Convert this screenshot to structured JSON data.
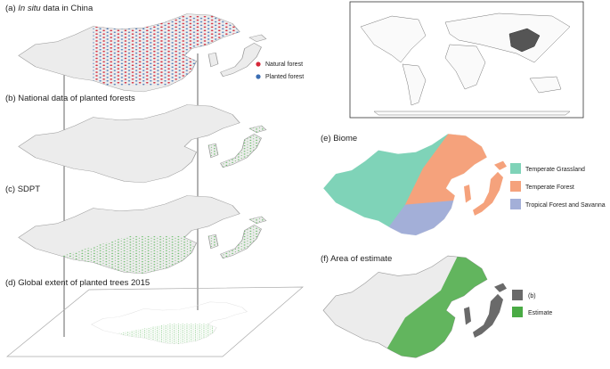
{
  "panels": [
    {
      "label": "(a)",
      "title_italic": "In situ",
      "title": "data in China",
      "legend": [
        {
          "label": "Natural forest",
          "color": "#d62839"
        },
        {
          "label": "Planted forest",
          "color": "#3b6db3"
        }
      ]
    },
    {
      "title": "(b) National data of planted forests"
    },
    {
      "title": "(c) SDPT"
    },
    {
      "title": "(d) Global extent of planted trees 2015"
    },
    {
      "title": "(e) Biome",
      "legend": [
        {
          "label": "Temperate Grassland",
          "color": "#7fd3b8"
        },
        {
          "label": "Temperate Forest",
          "color": "#f5a27c"
        },
        {
          "label": "Tropical Forest and Savanna",
          "color": "#a3afd8"
        }
      ]
    },
    {
      "title": "(f) Area of estimate",
      "legend": [
        {
          "label": "(b)",
          "color": "#6a6a6a"
        },
        {
          "label": "Estimate",
          "color": "#4aab45"
        }
      ]
    }
  ]
}
